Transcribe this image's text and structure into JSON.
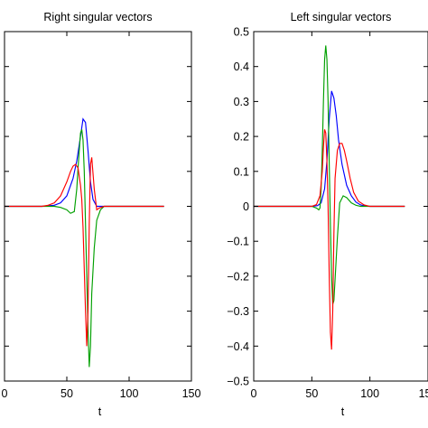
{
  "chart_data": [
    {
      "type": "line",
      "title": "Right singular vectors",
      "xlabel": "t",
      "ylabel": "",
      "xlim": [
        0,
        150
      ],
      "ylim": [
        -0.5,
        0.5
      ],
      "xticks": [
        "0",
        "50",
        "100",
        "150"
      ],
      "series": [
        {
          "color": "#0000ff",
          "x": [
            0,
            30,
            40,
            45,
            50,
            55,
            58,
            61,
            63,
            65,
            67,
            69,
            71,
            74,
            77,
            80,
            85,
            90,
            128
          ],
          "y": [
            0,
            0,
            0.003,
            0.01,
            0.03,
            0.08,
            0.13,
            0.2,
            0.25,
            0.24,
            0.16,
            0.07,
            0.02,
            0,
            0,
            0,
            0,
            0,
            0
          ]
        },
        {
          "color": "#00a000",
          "x": [
            0,
            40,
            45,
            50,
            53,
            56,
            58,
            59,
            60,
            61,
            62,
            63,
            64,
            65,
            66,
            67,
            68,
            69,
            70,
            72,
            74,
            77,
            80,
            128
          ],
          "y": [
            0,
            0,
            -0.003,
            -0.01,
            -0.02,
            -0.015,
            0.05,
            0.11,
            0.16,
            0.21,
            0.22,
            0.19,
            0.1,
            -0.05,
            -0.2,
            -0.35,
            -0.46,
            -0.4,
            -0.25,
            -0.12,
            -0.04,
            -0.01,
            0,
            0
          ]
        },
        {
          "color": "#ff0000",
          "x": [
            0,
            30,
            35,
            40,
            45,
            50,
            53,
            55,
            57,
            59,
            61,
            62,
            63,
            64,
            65,
            66,
            67,
            68,
            69,
            70,
            72,
            74,
            76,
            80,
            128
          ],
          "y": [
            0,
            0,
            0.003,
            0.01,
            0.03,
            0.07,
            0.1,
            0.115,
            0.12,
            0.11,
            0.06,
            0.02,
            -0.06,
            -0.18,
            -0.3,
            -0.4,
            -0.3,
            -0.05,
            0.12,
            0.14,
            0.05,
            -0.01,
            -0.005,
            0,
            0
          ]
        }
      ]
    },
    {
      "type": "line",
      "title": "Left singular vectors",
      "xlabel": "t",
      "ylabel": "",
      "xlim": [
        0,
        150
      ],
      "ylim": [
        -0.5,
        0.5
      ],
      "xticks": [
        "0",
        "50",
        "100",
        "150"
      ],
      "yticks": [
        "0.5",
        "0.4",
        "0.3",
        "0.2",
        "0.1",
        "0",
        "−0.1",
        "−0.2",
        "−0.3",
        "−0.4",
        "−0.5"
      ],
      "series": [
        {
          "color": "#0000ff",
          "x": [
            0,
            50,
            55,
            58,
            61,
            63,
            65,
            67,
            69,
            71,
            73,
            76,
            80,
            84,
            88,
            92,
            96,
            100,
            130
          ],
          "y": [
            0,
            0,
            0.002,
            0.01,
            0.05,
            0.13,
            0.25,
            0.33,
            0.31,
            0.26,
            0.19,
            0.12,
            0.06,
            0.03,
            0.012,
            0.004,
            0.001,
            0,
            0
          ]
        },
        {
          "color": "#00a000",
          "x": [
            0,
            50,
            54,
            56,
            57,
            58,
            59,
            60,
            61,
            62,
            63,
            64,
            65,
            66,
            67,
            68,
            69,
            70,
            72,
            74,
            77,
            80,
            84,
            88,
            92,
            130
          ],
          "y": [
            0,
            0,
            -0.005,
            -0.01,
            -0.005,
            0.05,
            0.16,
            0.3,
            0.42,
            0.46,
            0.42,
            0.3,
            0.12,
            -0.05,
            -0.2,
            -0.28,
            -0.27,
            -0.21,
            -0.09,
            0.01,
            0.03,
            0.025,
            0.01,
            0.003,
            0,
            0
          ]
        },
        {
          "color": "#ff0000",
          "x": [
            0,
            50,
            54,
            57,
            59,
            60,
            61,
            62,
            63,
            64,
            65,
            66,
            67,
            68,
            69,
            70,
            72,
            74,
            76,
            78,
            80,
            83,
            86,
            90,
            95,
            100,
            130
          ],
          "y": [
            0,
            0,
            0.005,
            0.03,
            0.1,
            0.17,
            0.22,
            0.21,
            0.13,
            0.0,
            -0.2,
            -0.36,
            -0.41,
            -0.3,
            -0.08,
            0.08,
            0.16,
            0.18,
            0.18,
            0.16,
            0.13,
            0.08,
            0.04,
            0.015,
            0.004,
            0,
            0
          ]
        }
      ]
    }
  ]
}
